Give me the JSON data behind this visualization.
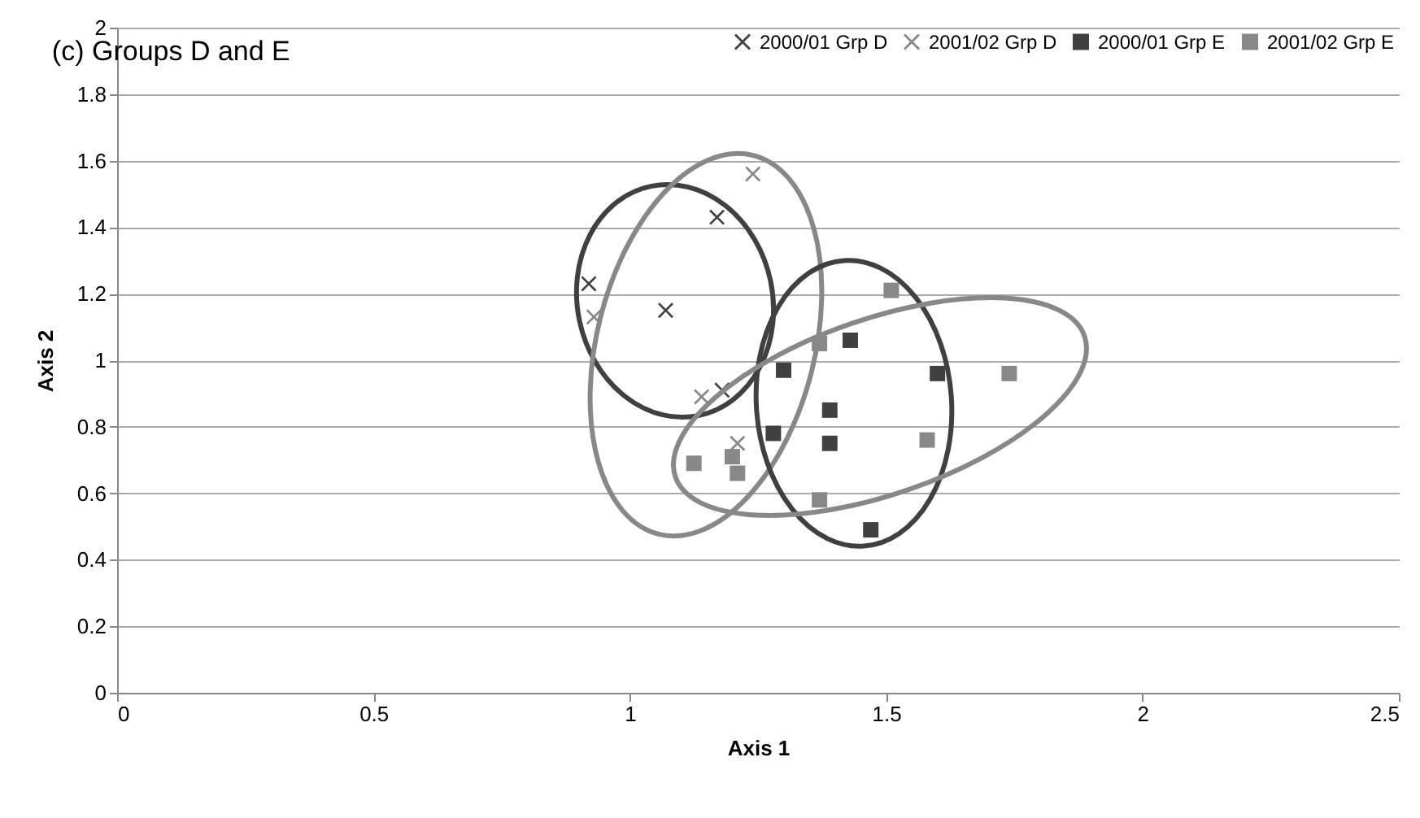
{
  "chart_data": {
    "type": "scatter",
    "title": "(c) Groups D and E",
    "xlabel": "Axis 1",
    "ylabel": "Axis 2",
    "xlim": [
      0,
      2.5
    ],
    "xticks": [
      0,
      0.5,
      1,
      1.5,
      2,
      2.5
    ],
    "ylim": [
      0,
      2
    ],
    "yticks": [
      0,
      0.2,
      0.4,
      0.6,
      0.8,
      1,
      1.2,
      1.4,
      1.6,
      1.8,
      2
    ],
    "grid": "y",
    "legend": "top right",
    "series": [
      {
        "name": "2000/01 Grp D",
        "marker": "cross",
        "color": "#404040",
        "x": [
          0.92,
          1.07,
          1.17,
          1.18
        ],
        "values": [
          1.23,
          1.15,
          1.43,
          0.91
        ]
      },
      {
        "name": "2001/02 Grp D",
        "marker": "cross",
        "color": "#888888",
        "x": [
          0.93,
          1.24,
          1.14,
          1.21
        ],
        "values": [
          1.13,
          1.56,
          0.89,
          0.75
        ]
      },
      {
        "name": "2000/01 Grp E",
        "marker": "square",
        "color": "#404040",
        "x": [
          1.43,
          1.3,
          1.6,
          1.39,
          1.28,
          1.39,
          1.47
        ],
        "values": [
          1.06,
          0.97,
          0.96,
          0.85,
          0.78,
          0.75,
          0.49
        ]
      },
      {
        "name": "2001/02 Grp E",
        "marker": "square",
        "color": "#888888",
        "x": [
          1.51,
          1.37,
          1.74,
          1.58,
          1.37,
          1.125,
          1.2,
          1.21
        ],
        "values": [
          1.21,
          1.05,
          0.96,
          0.76,
          0.58,
          0.69,
          0.71,
          0.66
        ]
      }
    ]
  }
}
